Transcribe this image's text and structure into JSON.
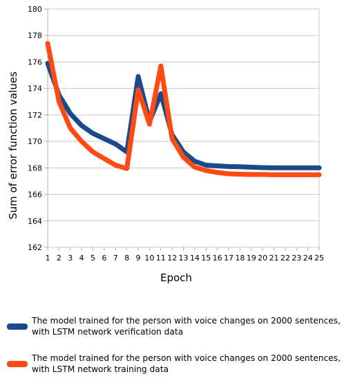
{
  "chart_data": {
    "type": "line",
    "title": "",
    "xlabel": "Epoch",
    "ylabel": "Sum of error function values",
    "categories": [
      "1",
      "2",
      "3",
      "4",
      "5",
      "6",
      "7",
      "8",
      "9",
      "10",
      "11",
      "12",
      "13",
      "14",
      "15",
      "16",
      "17",
      "18",
      "19",
      "20",
      "21",
      "22",
      "23",
      "24",
      "25"
    ],
    "y_ticks": [
      "162",
      "164",
      "166",
      "168",
      "170",
      "172",
      "174",
      "176",
      "178",
      "180"
    ],
    "ylim": [
      162,
      180
    ],
    "grid": "horizontal",
    "legend_position": "bottom",
    "series": [
      {
        "name": "The model trained for the person with voice changes on 2000 sentences, with LSTM network verification data",
        "color": "#1a4a8a",
        "values": [
          175.9,
          173.5,
          172.1,
          171.2,
          170.6,
          170.2,
          169.8,
          169.2,
          174.9,
          171.5,
          173.6,
          170.5,
          169.2,
          168.5,
          168.2,
          168.15,
          168.1,
          168.08,
          168.05,
          168.02,
          168.0,
          168.0,
          168.0,
          168.0,
          168.0
        ]
      },
      {
        "name": "The model trained for the person with voice changes on 2000 sentences, with LSTM network training data",
        "color": "#ff4a14",
        "values": [
          177.4,
          173.0,
          171.0,
          170.0,
          169.2,
          168.7,
          168.2,
          167.95,
          173.9,
          171.3,
          175.7,
          170.2,
          168.8,
          168.05,
          167.8,
          167.65,
          167.55,
          167.52,
          167.5,
          167.5,
          167.48,
          167.48,
          167.48,
          167.48,
          167.48
        ]
      }
    ]
  }
}
